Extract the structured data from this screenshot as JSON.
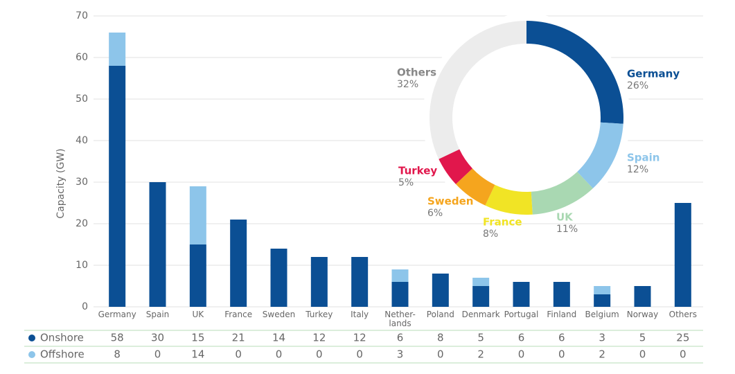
{
  "chart_data": [
    {
      "type": "bar",
      "stacked": true,
      "ylabel": "Capacity (GW)",
      "categories": [
        "Germany",
        "Spain",
        "UK",
        "France",
        "Sweden",
        "Turkey",
        "Italy",
        "Nether-lands",
        "Poland",
        "Denmark",
        "Portugal",
        "Finland",
        "Belgium",
        "Norway",
        "Others"
      ],
      "series": [
        {
          "name": "Onshore",
          "color": "#0b4f94",
          "values": [
            58,
            30,
            15,
            21,
            14,
            12,
            12,
            6,
            8,
            5,
            6,
            6,
            3,
            5,
            25
          ]
        },
        {
          "name": "Offshore",
          "color": "#8dc5ea",
          "values": [
            8,
            0,
            14,
            0,
            0,
            0,
            0,
            3,
            0,
            2,
            0,
            0,
            2,
            0,
            0
          ]
        }
      ],
      "ylim": [
        0,
        70
      ],
      "yticks": [
        0,
        10,
        20,
        30,
        40,
        50,
        60,
        70
      ],
      "grid": true
    },
    {
      "type": "pie",
      "donut": true,
      "categories": [
        "Germany",
        "Spain",
        "UK",
        "France",
        "Sweden",
        "Turkey",
        "Others"
      ],
      "values": [
        26,
        12,
        11,
        8,
        6,
        5,
        32
      ],
      "value_labels": [
        "26%",
        "12%",
        "11%",
        "8%",
        "6%",
        "5%",
        "32%"
      ],
      "colors": [
        "#0b4f94",
        "#8dc5ea",
        "#a9d8b2",
        "#f1e425",
        "#f5a51e",
        "#e1174c",
        "#ececec"
      ]
    }
  ]
}
